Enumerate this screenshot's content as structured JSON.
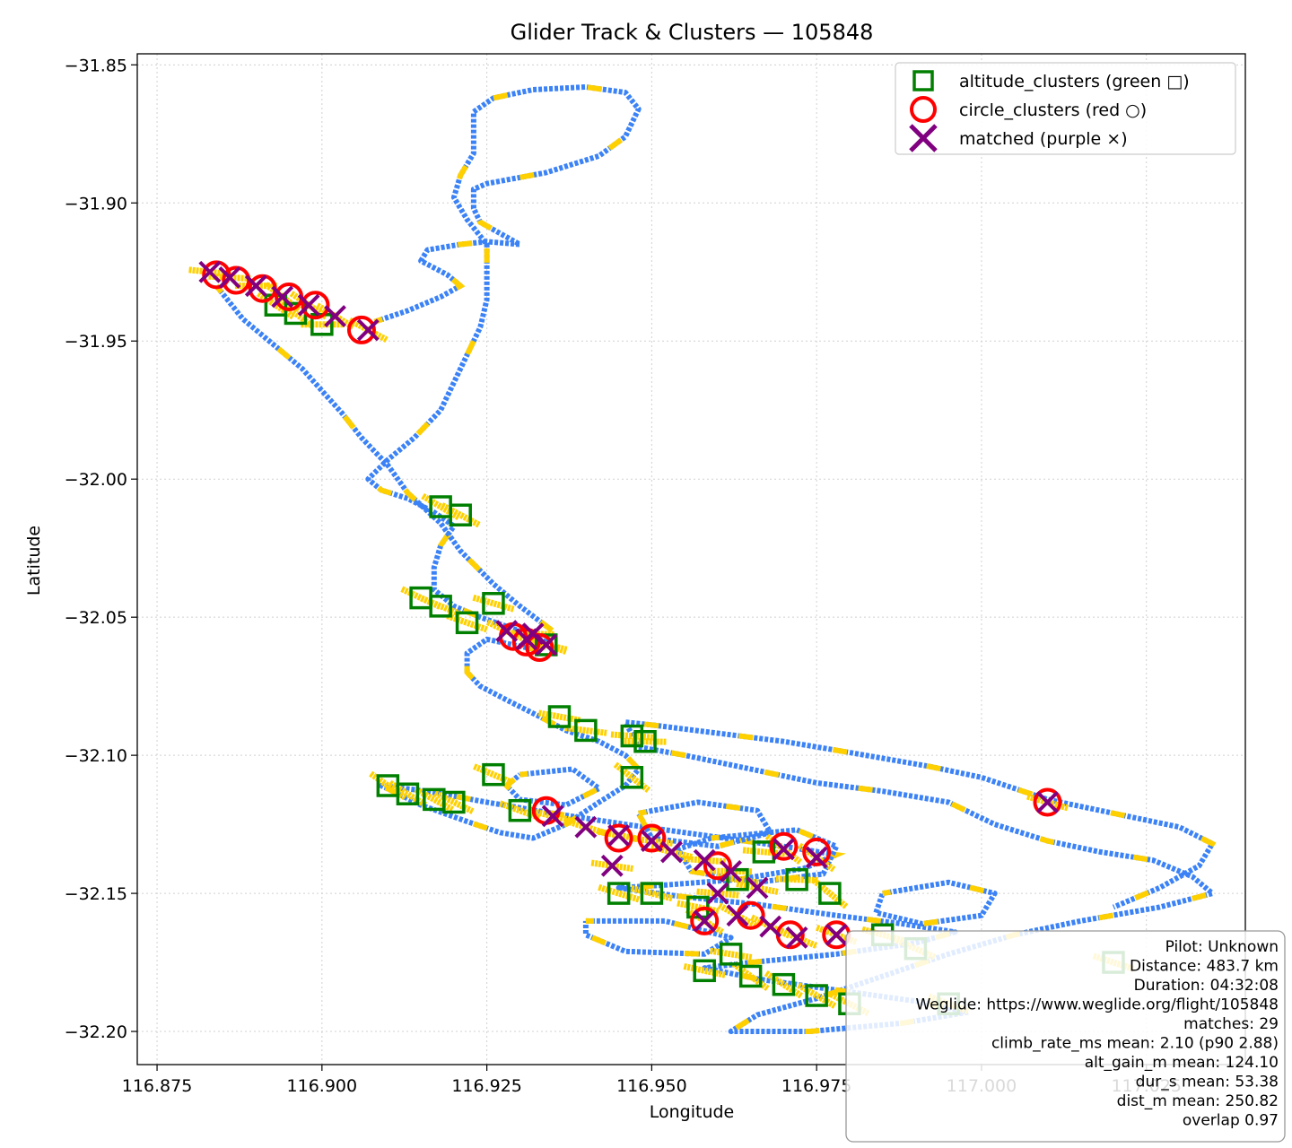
{
  "chart_data": {
    "type": "scatter",
    "title": "Glider Track & Clusters — 105848",
    "xlabel": "Longitude",
    "ylabel": "Latitude",
    "xlim": [
      116.872,
      117.04
    ],
    "ylim": [
      -32.212,
      -31.846
    ],
    "x_ticks": [
      116.875,
      116.9,
      116.925,
      116.95,
      116.975,
      117.0,
      117.025
    ],
    "x_tick_labels": [
      "116.875",
      "116.900",
      "116.925",
      "116.950",
      "116.975",
      "117.000",
      "117.025"
    ],
    "y_ticks": [
      -31.85,
      -31.9,
      -31.95,
      -32.0,
      -32.05,
      -32.1,
      -32.15,
      -32.2
    ],
    "y_tick_labels": [
      "−31.85",
      "−31.90",
      "−31.95",
      "−32.00",
      "−32.05",
      "−32.10",
      "−32.15",
      "−32.20"
    ],
    "grid": true,
    "legend_position": "top-right",
    "colors": {
      "track_blue": "#3b82f6",
      "track_yellow": "#ffd000",
      "altitude_green": "#007f00",
      "circle_red": "#ff0000",
      "matched_purple": "#800080"
    },
    "track_path": [
      [
        116.908,
        -31.943
      ],
      [
        116.913,
        -31.939
      ],
      [
        116.918,
        -31.934
      ],
      [
        116.921,
        -31.93
      ],
      [
        116.919,
        -31.926
      ],
      [
        116.915,
        -31.921
      ],
      [
        116.916,
        -31.917
      ],
      [
        116.921,
        -31.915
      ],
      [
        116.925,
        -31.914
      ],
      [
        116.93,
        -31.915
      ],
      [
        116.927,
        -31.911
      ],
      [
        116.924,
        -31.907
      ],
      [
        116.923,
        -31.902
      ],
      [
        116.923,
        -31.895
      ],
      [
        116.925,
        -31.893
      ],
      [
        116.934,
        -31.889
      ],
      [
        116.942,
        -31.883
      ],
      [
        116.946,
        -31.876
      ],
      [
        116.948,
        -31.866
      ],
      [
        116.946,
        -31.86
      ],
      [
        116.94,
        -31.858
      ],
      [
        116.932,
        -31.859
      ],
      [
        116.926,
        -31.862
      ],
      [
        116.923,
        -31.867
      ],
      [
        116.923,
        -31.875
      ],
      [
        116.923,
        -31.882
      ],
      [
        116.921,
        -31.89
      ],
      [
        116.92,
        -31.898
      ],
      [
        116.922,
        -31.906
      ],
      [
        116.925,
        -31.915
      ],
      [
        116.925,
        -31.925
      ],
      [
        116.925,
        -31.935
      ],
      [
        116.924,
        -31.945
      ],
      [
        116.922,
        -31.955
      ],
      [
        116.92,
        -31.965
      ],
      [
        116.918,
        -31.975
      ],
      [
        116.914,
        -31.985
      ],
      [
        116.91,
        -31.993
      ],
      [
        116.907,
        -32.0
      ],
      [
        116.909,
        -32.004
      ],
      [
        116.913,
        -32.007
      ],
      [
        116.917,
        -32.012
      ],
      [
        116.92,
        -32.017
      ],
      [
        116.918,
        -32.024
      ],
      [
        116.917,
        -32.032
      ],
      [
        116.917,
        -32.04
      ],
      [
        116.92,
        -32.046
      ],
      [
        116.924,
        -32.05
      ],
      [
        116.93,
        -32.055
      ],
      [
        116.934,
        -32.059
      ],
      [
        116.933,
        -32.062
      ],
      [
        116.929,
        -32.06
      ],
      [
        116.925,
        -32.058
      ],
      [
        116.922,
        -32.063
      ],
      [
        116.922,
        -32.07
      ],
      [
        116.924,
        -32.075
      ],
      [
        116.928,
        -32.08
      ],
      [
        116.933,
        -32.086
      ],
      [
        116.937,
        -32.091
      ],
      [
        116.942,
        -32.095
      ],
      [
        116.946,
        -32.1
      ],
      [
        116.948,
        -32.105
      ],
      [
        116.946,
        -32.111
      ],
      [
        116.942,
        -32.117
      ],
      [
        116.937,
        -32.125
      ],
      [
        116.932,
        -32.13
      ],
      [
        116.927,
        -32.128
      ],
      [
        116.922,
        -32.124
      ],
      [
        116.915,
        -32.118
      ],
      [
        116.909,
        -32.111
      ],
      [
        116.916,
        -32.113
      ],
      [
        116.925,
        -32.117
      ],
      [
        116.935,
        -32.121
      ],
      [
        116.946,
        -32.125
      ],
      [
        116.958,
        -32.129
      ],
      [
        116.97,
        -32.133
      ],
      [
        116.978,
        -32.136
      ],
      [
        116.973,
        -32.141
      ],
      [
        116.963,
        -32.145
      ],
      [
        116.952,
        -32.147
      ],
      [
        116.945,
        -32.148
      ],
      [
        116.954,
        -32.151
      ],
      [
        116.966,
        -32.154
      ],
      [
        116.978,
        -32.158
      ],
      [
        116.988,
        -32.161
      ],
      [
        116.996,
        -32.164
      ],
      [
        116.99,
        -32.168
      ],
      [
        116.978,
        -32.172
      ],
      [
        116.965,
        -32.175
      ],
      [
        116.958,
        -32.177
      ],
      [
        116.966,
        -32.181
      ],
      [
        116.978,
        -32.185
      ],
      [
        116.99,
        -32.189
      ],
      [
        116.998,
        -32.193
      ],
      [
        116.988,
        -32.197
      ],
      [
        116.974,
        -32.2
      ],
      [
        116.962,
        -32.2
      ],
      [
        116.966,
        -32.194
      ],
      [
        116.975,
        -32.188
      ],
      [
        116.985,
        -32.18
      ],
      [
        116.995,
        -32.172
      ],
      [
        117.005,
        -32.165
      ],
      [
        117.015,
        -32.16
      ],
      [
        117.027,
        -32.155
      ],
      [
        117.035,
        -32.15
      ],
      [
        117.032,
        -32.144
      ],
      [
        117.026,
        -32.138
      ],
      [
        117.018,
        -32.135
      ],
      [
        117.01,
        -32.131
      ],
      [
        117.002,
        -32.125
      ],
      [
        116.995,
        -32.117
      ],
      [
        116.985,
        -32.113
      ],
      [
        116.975,
        -32.11
      ],
      [
        116.965,
        -32.105
      ],
      [
        116.955,
        -32.1
      ],
      [
        116.948,
        -32.097
      ],
      [
        116.946,
        -32.088
      ],
      [
        116.95,
        -32.089
      ],
      [
        116.96,
        -32.092
      ],
      [
        116.97,
        -32.095
      ],
      [
        116.98,
        -32.099
      ],
      [
        116.992,
        -32.104
      ],
      [
        117.0,
        -32.108
      ],
      [
        117.01,
        -32.116
      ],
      [
        117.02,
        -32.121
      ],
      [
        117.03,
        -32.126
      ],
      [
        117.035,
        -32.132
      ],
      [
        117.033,
        -32.14
      ],
      [
        117.027,
        -32.148
      ],
      [
        117.02,
        -32.155
      ]
    ],
    "track_path_nw": [
      [
        116.884,
        -31.93
      ],
      [
        116.888,
        -31.942
      ],
      [
        116.892,
        -31.95
      ],
      [
        116.897,
        -31.96
      ],
      [
        116.9,
        -31.968
      ],
      [
        116.903,
        -31.976
      ],
      [
        116.906,
        -31.985
      ],
      [
        116.91,
        -31.995
      ],
      [
        116.913,
        -32.005
      ],
      [
        116.918,
        -32.016
      ],
      [
        116.921,
        -32.026
      ],
      [
        116.926,
        -32.038
      ],
      [
        116.93,
        -32.046
      ],
      [
        116.935,
        -32.055
      ]
    ],
    "loop_paths": [
      [
        [
          116.959,
          -32.13
        ],
        [
          116.972,
          -32.127
        ],
        [
          116.978,
          -32.133
        ],
        [
          116.976,
          -32.143
        ],
        [
          116.966,
          -32.146
        ],
        [
          116.956,
          -32.142
        ],
        [
          116.954,
          -32.134
        ],
        [
          116.959,
          -32.13
        ]
      ],
      [
        [
          116.948,
          -32.121
        ],
        [
          116.957,
          -32.117
        ],
        [
          116.966,
          -32.12
        ],
        [
          116.968,
          -32.128
        ],
        [
          116.96,
          -32.133
        ],
        [
          116.95,
          -32.13
        ],
        [
          116.948,
          -32.121
        ]
      ],
      [
        [
          116.985,
          -32.15
        ],
        [
          116.995,
          -32.146
        ],
        [
          117.002,
          -32.15
        ],
        [
          117.0,
          -32.158
        ],
        [
          116.991,
          -32.161
        ],
        [
          116.984,
          -32.157
        ],
        [
          116.985,
          -32.15
        ]
      ],
      [
        [
          116.93,
          -32.107
        ],
        [
          116.938,
          -32.105
        ],
        [
          116.942,
          -32.112
        ],
        [
          116.937,
          -32.118
        ],
        [
          116.93,
          -32.116
        ],
        [
          116.928,
          -32.111
        ],
        [
          116.93,
          -32.107
        ]
      ],
      [
        [
          116.94,
          -32.16
        ],
        [
          116.952,
          -32.16
        ],
        [
          116.962,
          -32.166
        ],
        [
          116.958,
          -32.172
        ],
        [
          116.946,
          -32.171
        ],
        [
          116.94,
          -32.165
        ],
        [
          116.94,
          -32.16
        ]
      ]
    ],
    "altitude_clusters": [
      [
        116.9,
        -31.944
      ],
      [
        116.896,
        -31.94
      ],
      [
        116.893,
        -31.937
      ],
      [
        116.918,
        -32.01
      ],
      [
        116.921,
        -32.013
      ],
      [
        116.915,
        -32.043
      ],
      [
        116.918,
        -32.046
      ],
      [
        116.922,
        -32.052
      ],
      [
        116.926,
        -32.045
      ],
      [
        116.934,
        -32.06
      ],
      [
        116.936,
        -32.086
      ],
      [
        116.94,
        -32.091
      ],
      [
        116.947,
        -32.093
      ],
      [
        116.949,
        -32.095
      ],
      [
        116.947,
        -32.108
      ],
      [
        116.91,
        -32.111
      ],
      [
        116.913,
        -32.114
      ],
      [
        116.917,
        -32.116
      ],
      [
        116.92,
        -32.117
      ],
      [
        116.926,
        -32.107
      ],
      [
        116.93,
        -32.12
      ],
      [
        116.945,
        -32.15
      ],
      [
        116.95,
        -32.15
      ],
      [
        116.957,
        -32.155
      ],
      [
        116.963,
        -32.145
      ],
      [
        116.967,
        -32.135
      ],
      [
        116.972,
        -32.145
      ],
      [
        116.977,
        -32.15
      ],
      [
        116.965,
        -32.18
      ],
      [
        116.97,
        -32.183
      ],
      [
        116.975,
        -32.187
      ],
      [
        116.98,
        -32.19
      ],
      [
        116.99,
        -32.17
      ],
      [
        116.995,
        -32.19
      ],
      [
        117.02,
        -32.175
      ],
      [
        116.985,
        -32.165
      ],
      [
        116.958,
        -32.178
      ],
      [
        116.962,
        -32.172
      ]
    ],
    "circle_clusters": [
      [
        116.884,
        -31.926
      ],
      [
        116.887,
        -31.928
      ],
      [
        116.891,
        -31.931
      ],
      [
        116.895,
        -31.934
      ],
      [
        116.899,
        -31.937
      ],
      [
        116.906,
        -31.946
      ],
      [
        116.929,
        -32.057
      ],
      [
        116.931,
        -32.059
      ],
      [
        116.933,
        -32.061
      ],
      [
        117.01,
        -32.117
      ],
      [
        116.934,
        -32.12
      ],
      [
        116.945,
        -32.13
      ],
      [
        116.95,
        -32.13
      ],
      [
        116.96,
        -32.14
      ],
      [
        116.97,
        -32.133
      ],
      [
        116.975,
        -32.135
      ],
      [
        116.958,
        -32.16
      ],
      [
        116.965,
        -32.158
      ],
      [
        116.971,
        -32.165
      ],
      [
        116.978,
        -32.165
      ]
    ],
    "matched": [
      [
        116.883,
        -31.925
      ],
      [
        116.886,
        -31.927
      ],
      [
        116.89,
        -31.93
      ],
      [
        116.894,
        -31.934
      ],
      [
        116.898,
        -31.937
      ],
      [
        116.902,
        -31.941
      ],
      [
        116.907,
        -31.946
      ],
      [
        116.928,
        -32.055
      ],
      [
        116.931,
        -32.058
      ],
      [
        116.934,
        -32.06
      ],
      [
        117.01,
        -32.117
      ],
      [
        116.935,
        -32.122
      ],
      [
        116.945,
        -32.129
      ],
      [
        116.95,
        -32.131
      ],
      [
        116.958,
        -32.138
      ],
      [
        116.962,
        -32.142
      ],
      [
        116.97,
        -32.134
      ],
      [
        116.975,
        -32.137
      ],
      [
        116.958,
        -32.16
      ],
      [
        116.963,
        -32.158
      ],
      [
        116.968,
        -32.162
      ],
      [
        116.972,
        -32.166
      ],
      [
        116.978,
        -32.165
      ],
      [
        116.94,
        -32.126
      ],
      [
        116.953,
        -32.135
      ],
      [
        116.966,
        -32.148
      ],
      [
        116.944,
        -32.14
      ],
      [
        116.96,
        -32.15
      ],
      [
        116.932,
        -32.056
      ]
    ],
    "legend": [
      {
        "label": "altitude_clusters (green □)",
        "marker": "square",
        "color": "#007f00"
      },
      {
        "label": "circle_clusters (red ○)",
        "marker": "circle",
        "color": "#ff0000"
      },
      {
        "label": "matched (purple ×)",
        "marker": "x",
        "color": "#800080"
      }
    ],
    "info_box": [
      "Pilot: Unknown",
      "Distance: 483.7 km",
      "Duration: 04:32:08",
      "Weglide: https://www.weglide.org/flight/105848",
      "matches: 29",
      "climb_rate_ms mean: 2.10 (p90 2.88)",
      "alt_gain_m mean: 124.10",
      "dur_s mean: 53.38",
      "dist_m mean: 250.82",
      "overlap 0.97"
    ]
  }
}
